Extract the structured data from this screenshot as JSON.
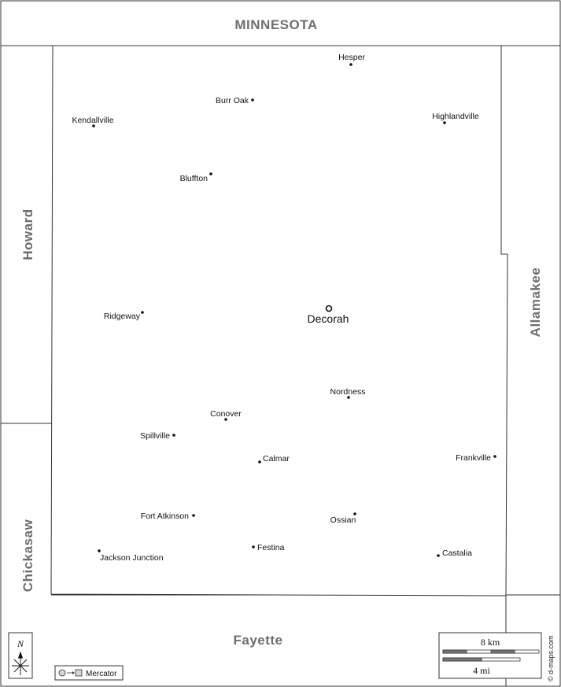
{
  "neighbors": {
    "north": "MINNESOTA",
    "west_upper": "Howard",
    "west_lower": "Chickasaw",
    "east": "Allamakee",
    "south": "Fayette"
  },
  "county_seat": "Decorah",
  "towns": [
    {
      "id": "hesper",
      "name": "Hesper"
    },
    {
      "id": "burr-oak",
      "name": "Burr Oak"
    },
    {
      "id": "kendallville",
      "name": "Kendallville"
    },
    {
      "id": "highlandville",
      "name": "Highlandville"
    },
    {
      "id": "bluffton",
      "name": "Bluffton"
    },
    {
      "id": "ridgeway",
      "name": "Ridgeway"
    },
    {
      "id": "nordness",
      "name": "Nordness"
    },
    {
      "id": "conover",
      "name": "Conover"
    },
    {
      "id": "spillville",
      "name": "Spillville"
    },
    {
      "id": "calmar",
      "name": "Calmar"
    },
    {
      "id": "frankville",
      "name": "Frankville"
    },
    {
      "id": "fort-atkinson",
      "name": "Fort Atkinson"
    },
    {
      "id": "ossian",
      "name": "Ossian"
    },
    {
      "id": "festina",
      "name": "Festina"
    },
    {
      "id": "jackson-junction",
      "name": "Jackson Junction"
    },
    {
      "id": "castalia",
      "name": "Castalia"
    }
  ],
  "scale": {
    "km_label": "8 km",
    "mi_label": "4 mi"
  },
  "north_arrow": {
    "label": "N",
    "icon": "north-arrow-icon"
  },
  "projection": {
    "label": "Mercator",
    "icon": "projection-icon"
  },
  "credit": "© d-maps.com"
}
